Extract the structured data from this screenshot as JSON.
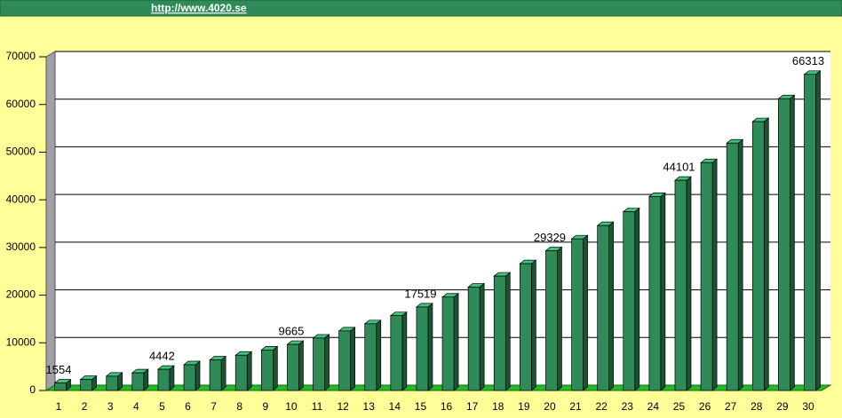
{
  "header": {
    "link": "http://www.4020.se"
  },
  "chart_data": {
    "type": "bar3d",
    "categories": [
      "1",
      "2",
      "3",
      "4",
      "5",
      "6",
      "7",
      "8",
      "9",
      "10",
      "11",
      "12",
      "13",
      "14",
      "15",
      "16",
      "17",
      "18",
      "19",
      "20",
      "21",
      "22",
      "23",
      "24",
      "25",
      "26",
      "27",
      "28",
      "29",
      "30"
    ],
    "values": [
      1554,
      2300,
      3000,
      3700,
      4442,
      5400,
      6400,
      7400,
      8500,
      9665,
      11000,
      12500,
      14000,
      15700,
      17519,
      19600,
      21700,
      24000,
      26600,
      29329,
      31800,
      34600,
      37500,
      40700,
      44101,
      47800,
      51900,
      56400,
      61200,
      66313
    ],
    "value_labels": [
      "1554",
      null,
      null,
      null,
      "4442",
      null,
      null,
      null,
      null,
      "9665",
      null,
      null,
      null,
      null,
      "17519",
      null,
      null,
      null,
      null,
      "29329",
      null,
      null,
      null,
      null,
      "44101",
      null,
      null,
      null,
      null,
      "66313"
    ],
    "color": "#2e8b57",
    "ylim": [
      0,
      70000
    ],
    "yticks": [
      0,
      10000,
      20000,
      30000,
      40000,
      50000,
      60000,
      70000
    ],
    "grid": true
  }
}
